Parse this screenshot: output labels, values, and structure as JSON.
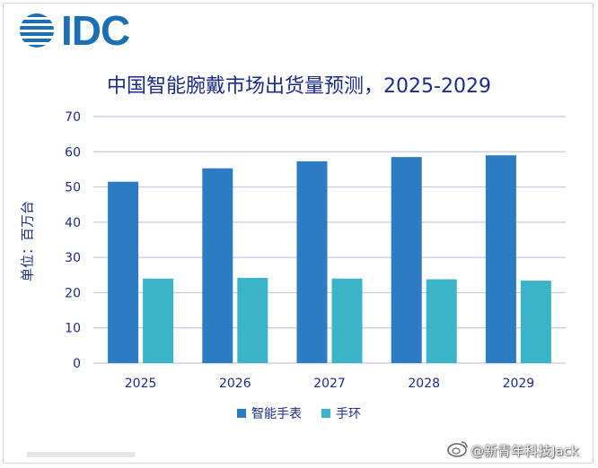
{
  "brand": {
    "logo_text": "IDC"
  },
  "watermark": {
    "text": "@新青年科技Jack"
  },
  "colors": {
    "series_watch": "#2b7cc2",
    "series_band": "#3bb4c8",
    "gridline": "#c7c7e6",
    "text": "#1a2b8f",
    "logo": "#1b6fb5"
  },
  "chart_data": {
    "type": "bar",
    "title": "中国智能腕戴市场出货量预测，2025-2029",
    "xlabel": "",
    "ylabel": "单位：百万台",
    "ylim": [
      0,
      70
    ],
    "yticks": [
      0,
      10,
      20,
      30,
      40,
      50,
      60,
      70
    ],
    "grid": true,
    "legend_position": "bottom-center",
    "categories": [
      "2025",
      "2026",
      "2027",
      "2028",
      "2029"
    ],
    "series": [
      {
        "name": "智能手表",
        "values": [
          51.5,
          55.3,
          57.3,
          58.5,
          59.0
        ]
      },
      {
        "name": "手环",
        "values": [
          24.0,
          24.2,
          24.0,
          23.8,
          23.4
        ]
      }
    ]
  }
}
